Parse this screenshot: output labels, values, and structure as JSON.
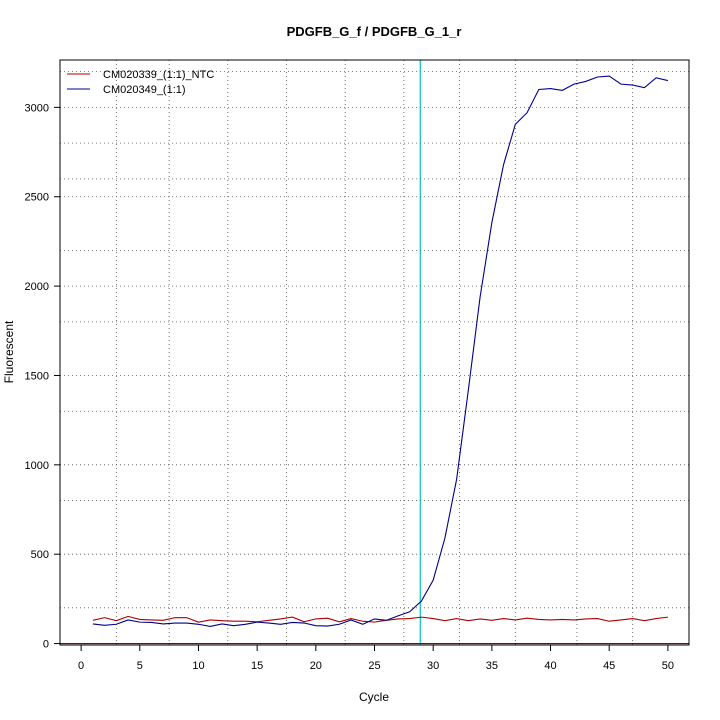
{
  "chart_data": {
    "type": "line",
    "title": "PDGFB_G_f / PDGFB_G_1_r",
    "xlabel": "Cycle",
    "ylabel": "Fluorescent",
    "xlim": [
      -1.8,
      51.8
    ],
    "ylim": [
      -8,
      3265
    ],
    "x_ticks": [
      0,
      5,
      10,
      15,
      20,
      25,
      30,
      35,
      40,
      45,
      50
    ],
    "y_ticks": [
      0,
      500,
      1000,
      1500,
      2000,
      2500,
      3000
    ],
    "x_tick_labels": [
      "0",
      "5",
      "10",
      "15",
      "20",
      "25",
      "30",
      "35",
      "40",
      "45",
      "50"
    ],
    "y_tick_labels": [
      "0",
      "500",
      "1000",
      "1500",
      "2000",
      "2500",
      "3000"
    ],
    "grid": true,
    "grid_style": "dotted",
    "x_grid": [
      3,
      7.5,
      12.5,
      17.5,
      22.5,
      27.5,
      32.25,
      37,
      42.25,
      47
    ],
    "y_grid": [
      0,
      200,
      500,
      800,
      1000,
      1300,
      1500,
      1800,
      2000,
      2200,
      2500,
      2600,
      2800,
      3000,
      3200
    ],
    "threshold": {
      "x": 28.9,
      "color": "#00bfc4"
    },
    "baseline": {
      "y": 0,
      "color": "#8b0000"
    },
    "legend_position": "top-left",
    "series": [
      {
        "name": "CM020339_(1:1)_NTC",
        "color": "#aa0000",
        "x": [
          1,
          2,
          3,
          4,
          5,
          6,
          7,
          8,
          9,
          10,
          11,
          12,
          13,
          14,
          15,
          16,
          17,
          18,
          19,
          20,
          21,
          22,
          23,
          24,
          25,
          26,
          27,
          28,
          29,
          30,
          31,
          32,
          33,
          34,
          35,
          36,
          37,
          38,
          39,
          40,
          41,
          42,
          43,
          44,
          45,
          46,
          47,
          48,
          49,
          50
        ],
        "values": [
          130,
          145,
          128,
          152,
          135,
          132,
          130,
          145,
          145,
          120,
          132,
          128,
          125,
          125,
          122,
          130,
          138,
          148,
          122,
          138,
          142,
          122,
          140,
          125,
          120,
          130,
          138,
          140,
          148,
          140,
          128,
          140,
          128,
          138,
          130,
          140,
          132,
          142,
          135,
          132,
          135,
          132,
          138,
          140,
          125,
          132,
          140,
          128,
          140,
          148
        ]
      },
      {
        "name": "CM020349_(1:1)",
        "color": "#00008b",
        "x": [
          1,
          2,
          3,
          4,
          5,
          6,
          7,
          8,
          9,
          10,
          11,
          12,
          13,
          14,
          15,
          16,
          17,
          18,
          19,
          20,
          21,
          22,
          23,
          24,
          25,
          26,
          27,
          28,
          29,
          30,
          31,
          32,
          33,
          34,
          35,
          36,
          37,
          38,
          39,
          40,
          41,
          42,
          43,
          44,
          45,
          46,
          47,
          48,
          49,
          50
        ],
        "values": [
          110,
          102,
          108,
          132,
          120,
          118,
          110,
          115,
          115,
          108,
          96,
          110,
          100,
          108,
          120,
          115,
          108,
          118,
          115,
          100,
          98,
          108,
          132,
          108,
          138,
          130,
          155,
          178,
          238,
          355,
          590,
          920,
          1420,
          1940,
          2355,
          2680,
          2905,
          2970,
          3100,
          3105,
          3095,
          3130,
          3145,
          3170,
          3175,
          3130,
          3125,
          3110,
          3165,
          3150
        ]
      }
    ]
  }
}
